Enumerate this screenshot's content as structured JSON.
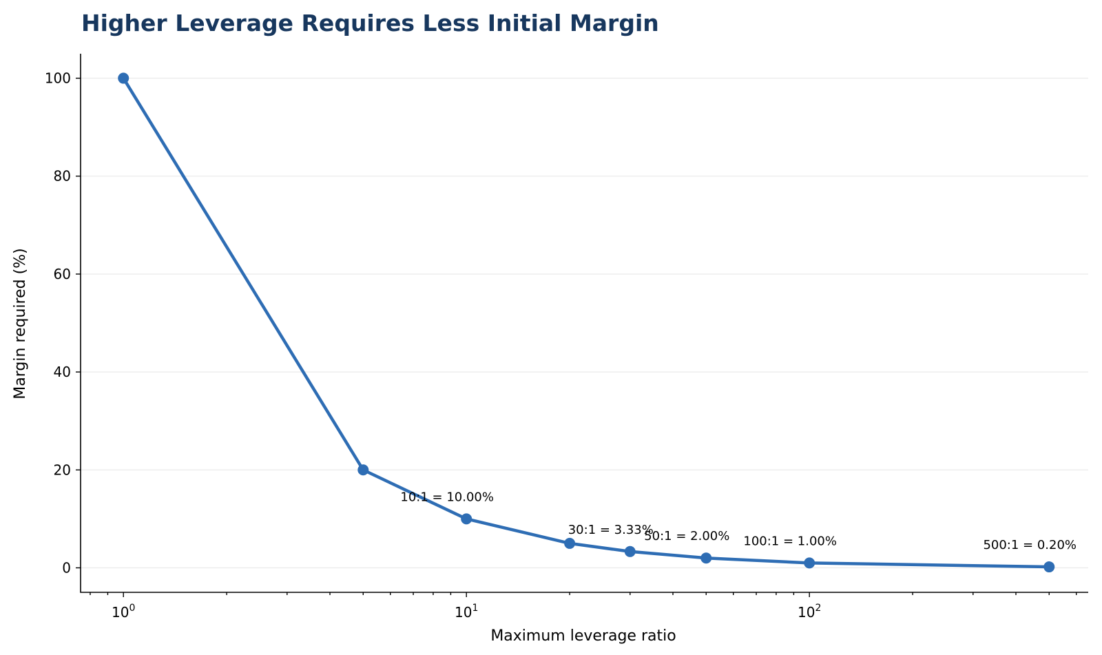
{
  "chart_data": {
    "type": "line",
    "title": "Higher Leverage Requires Less Initial Margin",
    "xlabel": "Maximum leverage ratio",
    "ylabel": "Margin required (%)",
    "x_scale": "log",
    "xlim": [
      0.75,
      650
    ],
    "ylim": [
      -5,
      105
    ],
    "grid": "horizontal",
    "color": "#2e6db4",
    "x_ticks": [
      {
        "value": 1,
        "base": "10",
        "exp": "0"
      },
      {
        "value": 10,
        "base": "10",
        "exp": "1"
      },
      {
        "value": 100,
        "base": "10",
        "exp": "2"
      }
    ],
    "y_ticks": [
      0,
      20,
      40,
      60,
      80,
      100
    ],
    "x": [
      1,
      5,
      10,
      20,
      30,
      50,
      100,
      500
    ],
    "values": [
      100,
      20,
      10,
      5,
      3.33,
      2,
      1,
      0.2
    ],
    "annotations": [
      {
        "x": 10,
        "y": 10,
        "text": "10:1 = 10.00%"
      },
      {
        "x": 30,
        "y": 3.33,
        "text": "30:1 = 3.33%"
      },
      {
        "x": 50,
        "y": 2,
        "text": "50:1 = 2.00%"
      },
      {
        "x": 100,
        "y": 1,
        "text": "100:1 = 1.00%"
      },
      {
        "x": 500,
        "y": 0.2,
        "text": "500:1 = 0.20%"
      }
    ]
  }
}
